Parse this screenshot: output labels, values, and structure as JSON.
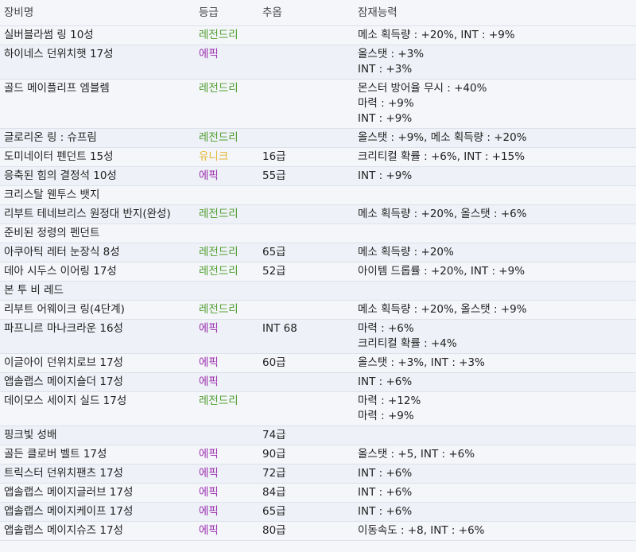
{
  "headers": [
    "장비명",
    "등급",
    "추옵",
    "잠재능력"
  ],
  "grade_colors": {
    "레전드리": "#4f9d2d",
    "에픽": "#9b2fae",
    "유니크": "#e5b732"
  },
  "rows": [
    {
      "name": "실버블라썸 링 10성",
      "grade": "레전드리",
      "flame": "",
      "potential": [
        "메소 획득량 : +20%, INT : +9%"
      ]
    },
    {
      "name": "하이네스 던위치햇 17성",
      "grade": "에픽",
      "flame": "",
      "potential": [
        "올스탯 : +3%",
        "INT : +3%"
      ]
    },
    {
      "name": "골드 메이플리프 엠블렘",
      "grade": "레전드리",
      "flame": "",
      "potential": [
        "몬스터 방어율 무시 : +40%",
        "마력 : +9%",
        "INT : +9%"
      ]
    },
    {
      "name": "글로리온 링 : 슈프림",
      "grade": "레전드리",
      "flame": "",
      "potential": [
        "올스탯 : +9%, 메소 획득량 : +20%"
      ]
    },
    {
      "name": "도미네이터 펜던트 15성",
      "grade": "유니크",
      "flame": "16급",
      "potential": [
        "크리티컬 확률 : +6%, INT : +15%"
      ]
    },
    {
      "name": "응축된 힘의 결정석 10성",
      "grade": "에픽",
      "flame": "55급",
      "potential": [
        "INT : +9%"
      ]
    },
    {
      "name": "크리스탈 웬투스 뱃지",
      "grade": "",
      "flame": "",
      "potential": []
    },
    {
      "name": "리부트 테네브리스 원정대 반지(완성)",
      "grade": "레전드리",
      "flame": "",
      "potential": [
        "메소 획득량 : +20%, 올스탯 : +6%"
      ]
    },
    {
      "name": "준비된 정령의 펜던트",
      "grade": "",
      "flame": "",
      "potential": []
    },
    {
      "name": "아쿠아틱 레터 눈장식 8성",
      "grade": "레전드리",
      "flame": "65급",
      "potential": [
        "메소 획득량 : +20%"
      ]
    },
    {
      "name": "데아 시두스 이어링 17성",
      "grade": "레전드리",
      "flame": "52급",
      "potential": [
        "아이템 드롭률 : +20%, INT : +9%"
      ]
    },
    {
      "name": "본 투 비 레드",
      "grade": "",
      "flame": "",
      "potential": []
    },
    {
      "name": "리부트 어웨이크 링(4단계)",
      "grade": "레전드리",
      "flame": "",
      "potential": [
        "메소 획득량 : +20%, 올스탯 : +9%"
      ]
    },
    {
      "name": "파프니르 마나크라운 16성",
      "grade": "에픽",
      "flame": "INT 68",
      "potential": [
        "마력 : +6%",
        "크리티컬 확률 : +4%"
      ]
    },
    {
      "name": "이글아이 던위치로브 17성",
      "grade": "에픽",
      "flame": "60급",
      "potential": [
        "올스탯 : +3%, INT : +3%"
      ]
    },
    {
      "name": "앱솔랩스 메이지숄더 17성",
      "grade": "에픽",
      "flame": "",
      "potential": [
        "INT : +6%"
      ]
    },
    {
      "name": "데이모스 세이지 실드 17성",
      "grade": "레전드리",
      "flame": "",
      "potential": [
        "마력 : +12%",
        "마력 : +9%"
      ]
    },
    {
      "name": "핑크빛 성배",
      "grade": "",
      "flame": "74급",
      "potential": []
    },
    {
      "name": "골든 클로버 벨트 17성",
      "grade": "에픽",
      "flame": "90급",
      "potential": [
        "올스탯 : +5, INT : +6%"
      ]
    },
    {
      "name": "트릭스터 던위치팬츠 17성",
      "grade": "에픽",
      "flame": "72급",
      "potential": [
        "INT : +6%"
      ]
    },
    {
      "name": "앱솔랩스 메이지글러브 17성",
      "grade": "에픽",
      "flame": "84급",
      "potential": [
        "INT : +6%"
      ]
    },
    {
      "name": "앱솔랩스 메이지케이프 17성",
      "grade": "에픽",
      "flame": "65급",
      "potential": [
        "INT : +6%"
      ]
    },
    {
      "name": "앱솔랩스 메이지슈즈 17성",
      "grade": "에픽",
      "flame": "80급",
      "potential": [
        "이동속도 : +8, INT : +6%"
      ]
    }
  ]
}
